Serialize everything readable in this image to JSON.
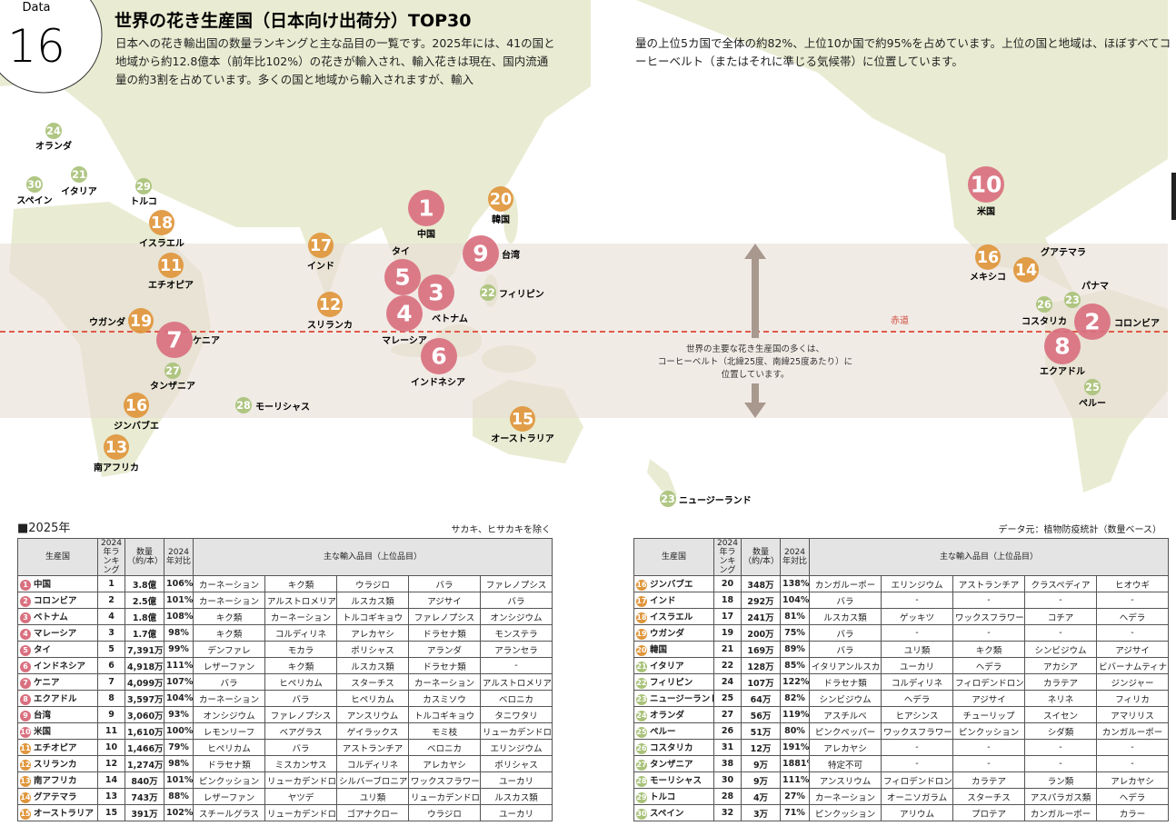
{
  "header": {
    "data_label": "Data",
    "number": "16",
    "title": "世界の花き生産国（日本向け出荷分）TOP30",
    "intro_left": "日本への花き輸出国の数量ランキングと主な品目の一覧です。2025年には、41の国と地域から約12.8億本（前年比102%）の花きが輸入され、輸入花きは現在、国内流通量の約3割を占めています。多くの国と地域から輸入されますが、輸入",
    "intro_right": "量の上位5カ国で全体の約82%、上位10か国で約95%を占めています。上位の国と地域は、ほぼすべてコーヒーベルト（またはそれに準じる気候帯）に位置しています。"
  },
  "map": {
    "equator_label": "赤道",
    "belt_note": [
      "世界の主要な花き生産国の多くは、",
      "コーヒーベルト（北緯25度、南緯25度あたり）に",
      "位置しています。"
    ],
    "markers": [
      {
        "rank": "1",
        "label": "中国"
      },
      {
        "rank": "2",
        "label": "コロンビア"
      },
      {
        "rank": "3",
        "label": "ベトナム"
      },
      {
        "rank": "4",
        "label": "マレーシア"
      },
      {
        "rank": "5",
        "label": "タイ"
      },
      {
        "rank": "6",
        "label": "インドネシア"
      },
      {
        "rank": "7",
        "label": "ケニア"
      },
      {
        "rank": "8",
        "label": "エクアドル"
      },
      {
        "rank": "9",
        "label": "台湾"
      },
      {
        "rank": "10",
        "label": "米国"
      },
      {
        "rank": "11",
        "label": "エチオピア"
      },
      {
        "rank": "12",
        "label": "スリランカ"
      },
      {
        "rank": "13",
        "label": "南アフリカ"
      },
      {
        "rank": "14",
        "label": "グアテマラ"
      },
      {
        "rank": "15",
        "label": "オーストラリア"
      },
      {
        "rank": "16",
        "label": "ジンバブエ"
      },
      {
        "rank": "16",
        "label": "メキシコ"
      },
      {
        "rank": "17",
        "label": "インド"
      },
      {
        "rank": "18",
        "label": "イスラエル"
      },
      {
        "rank": "19",
        "label": "ウガンダ"
      },
      {
        "rank": "20",
        "label": "韓国"
      },
      {
        "rank": "21",
        "label": "イタリア"
      },
      {
        "rank": "22",
        "label": "フィリピン"
      },
      {
        "rank": "23",
        "label": "パナマ"
      },
      {
        "rank": "23",
        "label": "ニュージーランド"
      },
      {
        "rank": "24",
        "label": "オランダ"
      },
      {
        "rank": "25",
        "label": "ペルー"
      },
      {
        "rank": "26",
        "label": "コスタリカ"
      },
      {
        "rank": "27",
        "label": "タンザニア"
      },
      {
        "rank": "28",
        "label": "モーリシャス"
      },
      {
        "rank": "29",
        "label": "トルコ"
      },
      {
        "rank": "30",
        "label": "スペイン"
      }
    ]
  },
  "table_heading": "■2025年",
  "table_note": "サカキ、ヒサカキを除く",
  "source": "データ元：植物防疫統計（数量ベース）",
  "columns": [
    "生産国",
    "2024年ランキング",
    "数量（約/本）",
    "2024年対比",
    "主な輸入品目（上位品目）"
  ],
  "table_left": {
    "rows": [
      [
        "1",
        "中国",
        "1",
        "3.8億",
        "106%",
        "カーネーション",
        "キク類",
        "ウラジロ",
        "バラ",
        "ファレノプシス"
      ],
      [
        "2",
        "コロンビア",
        "2",
        "2.5億",
        "101%",
        "カーネーション",
        "アルストロメリア",
        "ルスカス類",
        "アジサイ",
        "バラ"
      ],
      [
        "3",
        "ベトナム",
        "4",
        "1.8億",
        "108%",
        "キク類",
        "カーネーション",
        "トルコギキョウ",
        "ファレノプシス",
        "オンシジウム"
      ],
      [
        "4",
        "マレーシア",
        "3",
        "1.7億",
        "98%",
        "キク類",
        "コルディリネ",
        "アレカヤシ",
        "ドラセナ類",
        "モンステラ"
      ],
      [
        "5",
        "タイ",
        "5",
        "7,391万",
        "99%",
        "デンファレ",
        "モカラ",
        "ポリシャス",
        "アランダ",
        "アランセラ"
      ],
      [
        "6",
        "インドネシア",
        "6",
        "4,918万",
        "111%",
        "レザーファン",
        "キク類",
        "ルスカス類",
        "ドラセナ類",
        "-"
      ],
      [
        "7",
        "ケニア",
        "7",
        "4,099万",
        "107%",
        "バラ",
        "ヒペリカム",
        "スターチス",
        "カーネーション",
        "アルストロメリア"
      ],
      [
        "8",
        "エクアドル",
        "8",
        "3,597万",
        "104%",
        "カーネーション",
        "バラ",
        "ヒペリカム",
        "カスミソウ",
        "ベロニカ"
      ],
      [
        "9",
        "台湾",
        "9",
        "3,060万",
        "93%",
        "オンシジウム",
        "ファレノプシス",
        "アンスリウム",
        "トルコギキョウ",
        "タニワタリ"
      ],
      [
        "10",
        "米国",
        "11",
        "1,610万",
        "100%",
        "レモンリーフ",
        "ベアグラス",
        "ゲイラックス",
        "モミ枝",
        "リューカデンドロン"
      ],
      [
        "11",
        "エチオピア",
        "10",
        "1,466万",
        "79%",
        "ヒペリカム",
        "バラ",
        "アストランチア",
        "ベロニカ",
        "エリンジウム"
      ],
      [
        "12",
        "スリランカ",
        "12",
        "1,274万",
        "98%",
        "ドラセナ類",
        "ミスカンサス",
        "コルディリネ",
        "アレカヤシ",
        "ポリシャス"
      ],
      [
        "13",
        "南アフリカ",
        "14",
        "840万",
        "101%",
        "ピンクッション",
        "リューカデンドロン",
        "シルバーブロニア",
        "ワックスフラワー",
        "ユーカリ"
      ],
      [
        "14",
        "グアテマラ",
        "13",
        "743万",
        "88%",
        "レザーファン",
        "ヤツデ",
        "ユリ類",
        "リューカデンドロン",
        "ルスカス類"
      ],
      [
        "15",
        "オーストラリア",
        "15",
        "391万",
        "102%",
        "スチールグラス",
        "リューカデンドロン",
        "ゴアナクロー",
        "ウラジロ",
        "ユーカリ"
      ]
    ]
  },
  "table_right": {
    "rows": [
      [
        "16",
        "ジンバブエ",
        "20",
        "348万",
        "138%",
        "カンガルーポー",
        "エリンジウム",
        "アストランチア",
        "クラスペディア",
        "ヒオウギ"
      ],
      [
        "17",
        "インド",
        "18",
        "292万",
        "104%",
        "バラ",
        "-",
        "-",
        "-",
        "-"
      ],
      [
        "18",
        "イスラエル",
        "17",
        "241万",
        "81%",
        "ルスカス類",
        "ゲッキツ",
        "ワックスフラワー",
        "コチア",
        "ヘデラ"
      ],
      [
        "19",
        "ウガンダ",
        "19",
        "200万",
        "75%",
        "バラ",
        "-",
        "-",
        "-",
        "-"
      ],
      [
        "20",
        "韓国",
        "21",
        "169万",
        "89%",
        "バラ",
        "ユリ類",
        "キク類",
        "シンビジウム",
        "アジサイ"
      ],
      [
        "21",
        "イタリア",
        "22",
        "128万",
        "85%",
        "イタリアンルスカス",
        "ユーカリ",
        "ヘデラ",
        "アカシア",
        "ビバーナムティナス"
      ],
      [
        "22",
        "フィリピン",
        "24",
        "107万",
        "122%",
        "ドラセナ類",
        "コルディリネ",
        "フィロデンドロン",
        "カラテア",
        "ジンジャー"
      ],
      [
        "23",
        "ニュージーランド",
        "25",
        "64万",
        "82%",
        "シンビジウム",
        "ヘデラ",
        "アジサイ",
        "ネリネ",
        "フィリカ"
      ],
      [
        "24",
        "オランダ",
        "27",
        "56万",
        "119%",
        "アスチルベ",
        "ヒアシンス",
        "チューリップ",
        "スイセン",
        "アマリリス"
      ],
      [
        "25",
        "ペルー",
        "26",
        "51万",
        "80%",
        "ピンクペッパー",
        "ワックスフラワー",
        "ピンクッション",
        "シダ類",
        "カンガルーポー"
      ],
      [
        "26",
        "コスタリカ",
        "31",
        "12万",
        "191%",
        "アレカヤシ",
        "-",
        "-",
        "-",
        "-"
      ],
      [
        "27",
        "タンザニア",
        "38",
        "9万",
        "1881%",
        "特定不可",
        "-",
        "-",
        "-",
        "-"
      ],
      [
        "28",
        "モーリシャス",
        "30",
        "9万",
        "111%",
        "アンスリウム",
        "フィロデンドロン",
        "カラテア",
        "ラン類",
        "アレカヤシ"
      ],
      [
        "29",
        "トルコ",
        "28",
        "4万",
        "27%",
        "カーネーション",
        "オーニソガラム",
        "スターチス",
        "アスパラガス類",
        "ヘデラ"
      ],
      [
        "30",
        "スペイン",
        "32",
        "3万",
        "71%",
        "ピンクッション",
        "アリウム",
        "プロテア",
        "カンガルーポー",
        "カラー"
      ]
    ]
  }
}
